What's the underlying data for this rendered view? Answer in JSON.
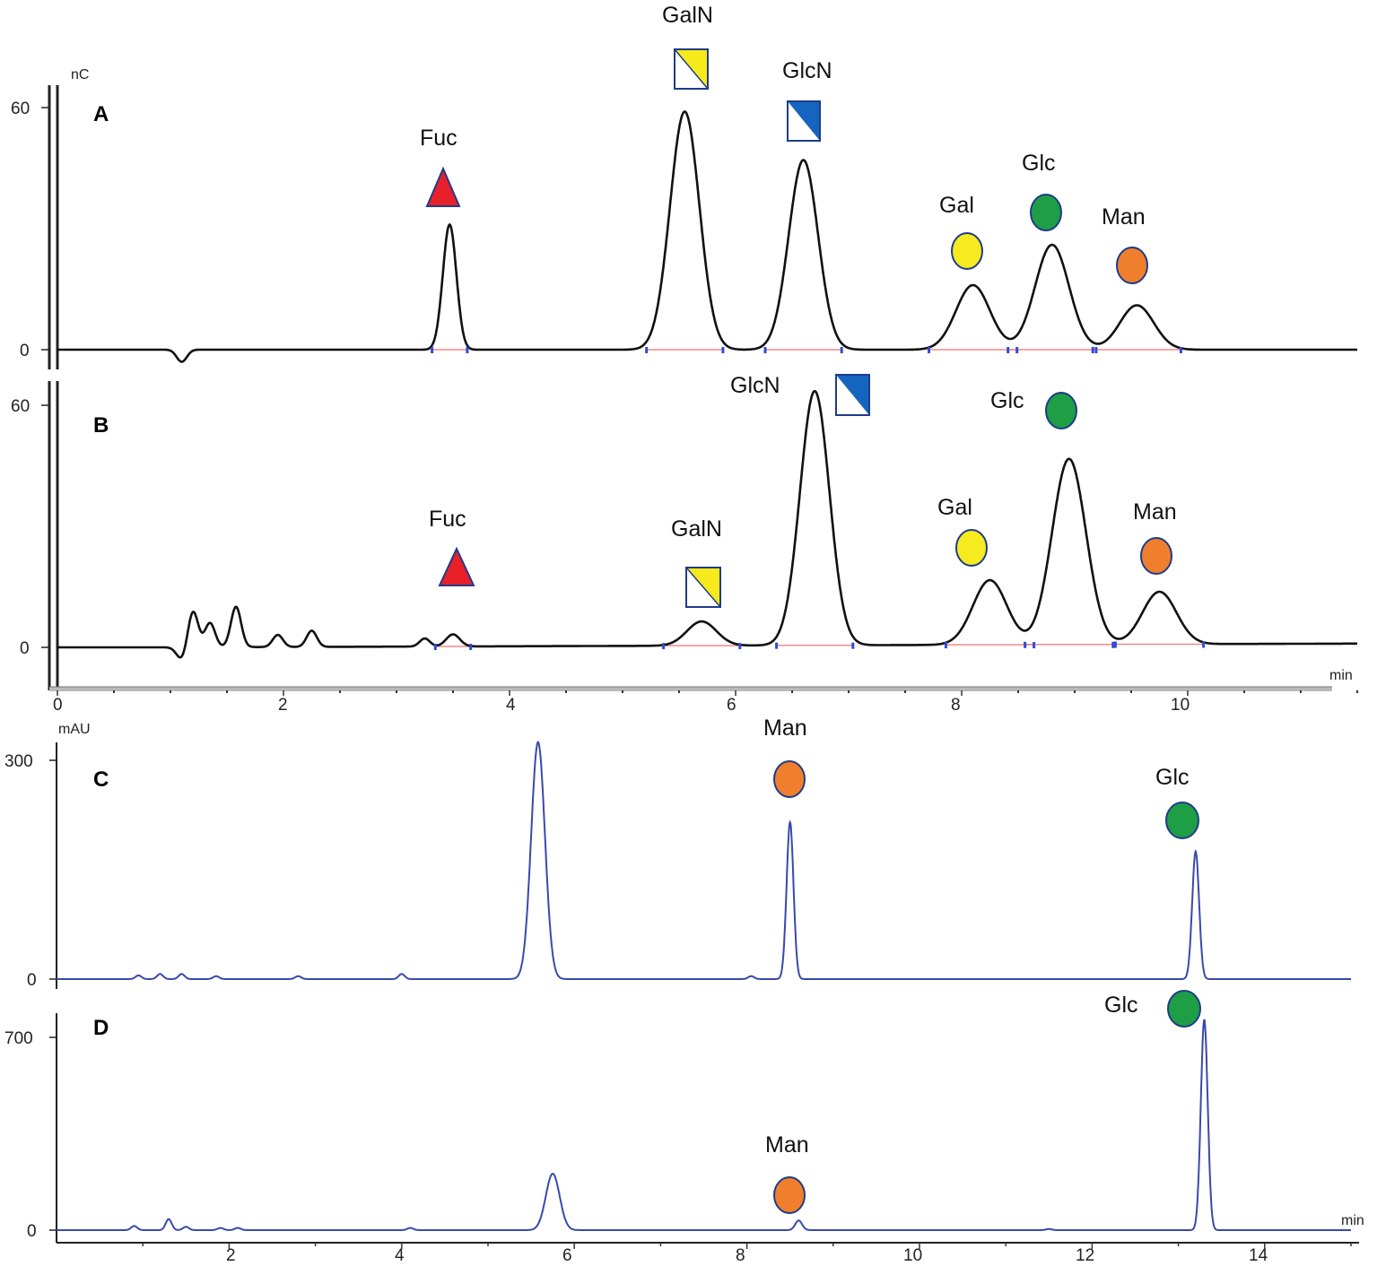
{
  "chart_data": [
    {
      "panel": "A",
      "type": "line",
      "y_unit": "nC",
      "y_ticks": [
        "0",
        "60"
      ],
      "xlim": [
        0,
        11.5
      ],
      "ylim": [
        -8,
        66
      ],
      "series_color": "#111111",
      "baseline_color": "#f08a8a",
      "peaks": [
        {
          "name": "Fuc",
          "rt": 3.47,
          "height": 31,
          "symbol": "triangle",
          "color": "#e8202a"
        },
        {
          "name": "GalN",
          "rt": 5.55,
          "height": 59,
          "symbol": "square-yellow",
          "color": "#f7ea1b"
        },
        {
          "name": "GlcN",
          "rt": 6.6,
          "height": 47,
          "symbol": "square-blue",
          "color": "#1565c0"
        },
        {
          "name": "Gal",
          "rt": 8.1,
          "height": 16,
          "symbol": "circle",
          "color": "#f5eb1f"
        },
        {
          "name": "Glc",
          "rt": 8.8,
          "height": 26,
          "symbol": "circle",
          "color": "#1e9e45"
        },
        {
          "name": "Man",
          "rt": 9.55,
          "height": 11,
          "symbol": "circle",
          "color": "#f07f2d"
        }
      ],
      "minor_peaks": [
        {
          "rt": 1.1,
          "height": -3
        }
      ]
    },
    {
      "panel": "B",
      "type": "line",
      "y_unit": "",
      "y_ticks": [
        "0",
        "60"
      ],
      "x_unit": "min",
      "x_ticks": [
        "0",
        "2",
        "4",
        "6",
        "8",
        "10"
      ],
      "xlim": [
        0,
        11.5
      ],
      "ylim": [
        -8,
        66
      ],
      "series_color": "#111111",
      "baseline_color": "#f08a8a",
      "peaks": [
        {
          "name": "Fuc",
          "rt": 3.5,
          "height": 3,
          "symbol": "triangle",
          "color": "#e8202a"
        },
        {
          "name": "GalN",
          "rt": 5.7,
          "height": 6,
          "symbol": "square-yellow",
          "color": "#f7ea1b"
        },
        {
          "name": "GlcN",
          "rt": 6.7,
          "height": 63,
          "symbol": "square-blue",
          "color": "#1565c0"
        },
        {
          "name": "Gal",
          "rt": 8.25,
          "height": 16,
          "symbol": "circle",
          "color": "#f5eb1f"
        },
        {
          "name": "Glc",
          "rt": 8.95,
          "height": 46,
          "symbol": "circle",
          "color": "#1e9e45"
        },
        {
          "name": "Man",
          "rt": 9.75,
          "height": 13,
          "symbol": "circle",
          "color": "#f07f2d"
        }
      ],
      "minor_peaks": [
        {
          "rt": 1.1,
          "height": -3
        },
        {
          "rt": 1.2,
          "height": 9
        },
        {
          "rt": 1.35,
          "height": 6
        },
        {
          "rt": 1.58,
          "height": 10
        },
        {
          "rt": 1.95,
          "height": 3
        },
        {
          "rt": 2.25,
          "height": 4
        },
        {
          "rt": 3.25,
          "height": 2
        }
      ]
    },
    {
      "panel": "C",
      "type": "line",
      "y_unit": "mAU",
      "y_ticks": [
        "0",
        "300"
      ],
      "xlim": [
        0,
        15
      ],
      "ylim": [
        -10,
        330
      ],
      "series_color": "#3949ab",
      "peaks": [
        {
          "name": "",
          "rt": 5.58,
          "height": 325,
          "symbol": "none"
        },
        {
          "name": "Man",
          "rt": 8.5,
          "height": 215,
          "symbol": "circle",
          "color": "#f07f2d"
        },
        {
          "name": "Glc",
          "rt": 13.2,
          "height": 175,
          "symbol": "circle",
          "color": "#1e9e45"
        }
      ],
      "minor_peaks": [
        {
          "rt": 0.95,
          "height": 5
        },
        {
          "rt": 1.2,
          "height": 7
        },
        {
          "rt": 1.45,
          "height": 7
        },
        {
          "rt": 1.85,
          "height": 4
        },
        {
          "rt": 2.8,
          "height": 4
        },
        {
          "rt": 4.0,
          "height": 7
        },
        {
          "rt": 8.05,
          "height": 4
        }
      ]
    },
    {
      "panel": "D",
      "type": "line",
      "y_unit": "",
      "y_ticks": [
        "0",
        "700"
      ],
      "x_unit": "min",
      "x_ticks": [
        "2",
        "4",
        "6",
        "8",
        "10",
        "12",
        "14"
      ],
      "xlim": [
        0,
        15
      ],
      "ylim": [
        -20,
        770
      ],
      "series_color": "#3949ab",
      "peaks": [
        {
          "name": "",
          "rt": 5.75,
          "height": 205,
          "symbol": "none"
        },
        {
          "name": "Man",
          "rt": 8.6,
          "height": 35,
          "symbol": "circle",
          "color": "#f07f2d"
        },
        {
          "name": "Glc",
          "rt": 13.3,
          "height": 765,
          "symbol": "circle",
          "color": "#1e9e45"
        }
      ],
      "minor_peaks": [
        {
          "rt": 0.9,
          "height": 15
        },
        {
          "rt": 1.3,
          "height": 40
        },
        {
          "rt": 1.5,
          "height": 12
        },
        {
          "rt": 1.9,
          "height": 8
        },
        {
          "rt": 2.1,
          "height": 8
        },
        {
          "rt": 4.1,
          "height": 8
        },
        {
          "rt": 11.5,
          "height": 4
        }
      ]
    }
  ]
}
